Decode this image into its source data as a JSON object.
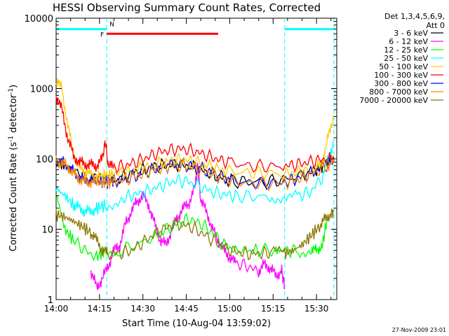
{
  "chart_data": {
    "type": "line",
    "title": "HESSI Observing Summary Count Rates, Corrected",
    "xlabel": "Start Time (10-Aug-04 13:59:02)",
    "ylabel_main": "Corrected Count Rate (s",
    "ylabel_sup": "-1",
    "ylabel_mid": " detector",
    "ylabel_end": ")",
    "yscale": "log",
    "ylim": [
      1,
      10000
    ],
    "xlim_minutes": [
      0,
      97
    ],
    "x_tick_labels": [
      "14:00",
      "14:15",
      "14:30",
      "14:45",
      "15:00",
      "15:15",
      "15:30"
    ],
    "x_tick_minutes": [
      0,
      15,
      30,
      45,
      60,
      75,
      90
    ],
    "y_tick_labels": [
      "1",
      "10",
      "100",
      "1000",
      "10000"
    ],
    "y_tick_values": [
      1,
      10,
      100,
      1000,
      10000
    ],
    "legend_header": [
      "Det 1,3,4,5,6,9,",
      "Att 0"
    ],
    "footer_date": "27-Nov-2009 23:01",
    "night_markers_minutes": [
      17.5,
      79,
      96
    ],
    "bars": [
      {
        "label": "N",
        "color": "#00ffff",
        "y": 7000,
        "segments": [
          [
            0,
            17.5
          ],
          [
            79,
            96
          ]
        ]
      },
      {
        "label": "F",
        "color": "#ff0000",
        "y": 6000,
        "segments": [
          [
            17.5,
            56
          ]
        ]
      }
    ],
    "series": [
      {
        "name": "3 - 6 keV",
        "color": "#000000",
        "points": [
          [
            0,
            88
          ],
          [
            3,
            80
          ],
          [
            8,
            55
          ],
          [
            12,
            52
          ],
          [
            17,
            50
          ],
          [
            22,
            52
          ],
          [
            26,
            62
          ],
          [
            30,
            70
          ],
          [
            34,
            78
          ],
          [
            38,
            82
          ],
          [
            42,
            84
          ],
          [
            46,
            80
          ],
          [
            50,
            70
          ],
          [
            54,
            60
          ],
          [
            58,
            52
          ],
          [
            62,
            48
          ],
          [
            68,
            47
          ],
          [
            74,
            48
          ],
          [
            80,
            52
          ],
          [
            86,
            60
          ],
          [
            90,
            70
          ],
          [
            93,
            85
          ],
          [
            96,
            95
          ]
        ]
      },
      {
        "name": "6 - 12 keV",
        "color": "#ff00ff",
        "points": [
          [
            12,
            2.5
          ],
          [
            14,
            1.5
          ],
          [
            16,
            2
          ],
          [
            18,
            3
          ],
          [
            20,
            5
          ],
          [
            22,
            6
          ],
          [
            24,
            12
          ],
          [
            26,
            18
          ],
          [
            28,
            25
          ],
          [
            30,
            30
          ],
          [
            32,
            22
          ],
          [
            34,
            12
          ],
          [
            36,
            7
          ],
          [
            38,
            6
          ],
          [
            40,
            10
          ],
          [
            42,
            15
          ],
          [
            44,
            20
          ],
          [
            46,
            24
          ],
          [
            48,
            40
          ],
          [
            49,
            80
          ],
          [
            50,
            25
          ],
          [
            52,
            18
          ],
          [
            54,
            10
          ],
          [
            56,
            7
          ],
          [
            58,
            5
          ],
          [
            60,
            4
          ],
          [
            62,
            3.3
          ],
          [
            66,
            3
          ],
          [
            70,
            2.5
          ],
          [
            72,
            3.2
          ],
          [
            74,
            2.8
          ],
          [
            76,
            2.2
          ],
          [
            78,
            2.6
          ],
          [
            79,
            1.5
          ]
        ]
      },
      {
        "name": "12 - 25 keV",
        "color": "#00ff00",
        "points": [
          [
            0,
            33
          ],
          [
            3,
            10
          ],
          [
            6,
            7
          ],
          [
            10,
            5
          ],
          [
            14,
            4
          ],
          [
            17,
            5
          ],
          [
            22,
            5
          ],
          [
            28,
            6
          ],
          [
            34,
            8
          ],
          [
            38,
            10
          ],
          [
            42,
            12
          ],
          [
            46,
            14
          ],
          [
            50,
            12
          ],
          [
            54,
            9
          ],
          [
            58,
            6
          ],
          [
            62,
            5
          ],
          [
            70,
            5
          ],
          [
            76,
            5
          ],
          [
            79,
            5
          ],
          [
            83,
            5
          ],
          [
            88,
            5
          ],
          [
            90,
            5
          ],
          [
            92,
            6
          ],
          [
            93,
            10
          ],
          [
            94,
            15
          ]
        ]
      },
      {
        "name": "25 - 50 keV",
        "color": "#00ffff",
        "points": [
          [
            0,
            38
          ],
          [
            3,
            30
          ],
          [
            6,
            22
          ],
          [
            8,
            20
          ],
          [
            10,
            18
          ],
          [
            12,
            18
          ],
          [
            14,
            20
          ],
          [
            17,
            22
          ],
          [
            22,
            26
          ],
          [
            26,
            30
          ],
          [
            30,
            33
          ],
          [
            34,
            38
          ],
          [
            38,
            44
          ],
          [
            42,
            50
          ],
          [
            46,
            47
          ],
          [
            50,
            40
          ],
          [
            54,
            34
          ],
          [
            58,
            31
          ],
          [
            62,
            30
          ],
          [
            68,
            29
          ],
          [
            74,
            29
          ],
          [
            79,
            29
          ],
          [
            84,
            30
          ],
          [
            88,
            34
          ],
          [
            92,
            55
          ],
          [
            94,
            100
          ],
          [
            96,
            180
          ]
        ]
      },
      {
        "name": "50 - 100 keV",
        "color": "#ffcc00",
        "points": [
          [
            0,
            1300
          ],
          [
            2,
            1000
          ],
          [
            4,
            300
          ],
          [
            6,
            120
          ],
          [
            8,
            75
          ],
          [
            10,
            66
          ],
          [
            12,
            60
          ],
          [
            14,
            56
          ],
          [
            17,
            58
          ],
          [
            20,
            62
          ],
          [
            24,
            65
          ],
          [
            28,
            72
          ],
          [
            32,
            78
          ],
          [
            36,
            87
          ],
          [
            40,
            95
          ],
          [
            44,
            98
          ],
          [
            48,
            92
          ],
          [
            52,
            82
          ],
          [
            56,
            72
          ],
          [
            60,
            66
          ],
          [
            66,
            64
          ],
          [
            72,
            63
          ],
          [
            78,
            62
          ],
          [
            82,
            64
          ],
          [
            86,
            68
          ],
          [
            90,
            75
          ],
          [
            92,
            90
          ],
          [
            94,
            200
          ],
          [
            96,
            420
          ]
        ]
      },
      {
        "name": "100 - 300 keV",
        "color": "#ff0000",
        "points": [
          [
            0,
            800
          ],
          [
            2,
            500
          ],
          [
            4,
            200
          ],
          [
            6,
            110
          ],
          [
            8,
            90
          ],
          [
            10,
            85
          ],
          [
            12,
            82
          ],
          [
            14,
            80
          ],
          [
            16,
            100
          ],
          [
            17,
            180
          ],
          [
            18,
            80
          ],
          [
            20,
            76
          ],
          [
            24,
            80
          ],
          [
            28,
            92
          ],
          [
            32,
            108
          ],
          [
            36,
            125
          ],
          [
            40,
            135
          ],
          [
            44,
            138
          ],
          [
            48,
            128
          ],
          [
            52,
            112
          ],
          [
            56,
            98
          ],
          [
            60,
            88
          ],
          [
            66,
            80
          ],
          [
            72,
            78
          ],
          [
            78,
            79
          ],
          [
            82,
            82
          ],
          [
            86,
            88
          ],
          [
            90,
            95
          ],
          [
            94,
            100
          ],
          [
            96,
            102
          ]
        ]
      },
      {
        "name": "300 - 800 keV",
        "color": "#0000ff",
        "points": [
          [
            0,
            95
          ],
          [
            2,
            90
          ],
          [
            4,
            80
          ],
          [
            6,
            65
          ],
          [
            8,
            54
          ],
          [
            10,
            50
          ],
          [
            12,
            49
          ],
          [
            14,
            48
          ],
          [
            17,
            47
          ],
          [
            20,
            49
          ],
          [
            24,
            52
          ],
          [
            28,
            58
          ],
          [
            32,
            67
          ],
          [
            36,
            76
          ],
          [
            40,
            82
          ],
          [
            44,
            83
          ],
          [
            48,
            77
          ],
          [
            52,
            68
          ],
          [
            56,
            58
          ],
          [
            60,
            50
          ],
          [
            66,
            46
          ],
          [
            72,
            45
          ],
          [
            78,
            46
          ],
          [
            82,
            50
          ],
          [
            86,
            58
          ],
          [
            90,
            68
          ],
          [
            94,
            84
          ],
          [
            96,
            92
          ]
        ]
      },
      {
        "name": "800 - 7000 keV",
        "color": "#ff8800",
        "points": [
          [
            0,
            92
          ],
          [
            2,
            88
          ],
          [
            4,
            78
          ],
          [
            6,
            62
          ],
          [
            8,
            52
          ],
          [
            10,
            48
          ],
          [
            12,
            47
          ],
          [
            14,
            46
          ],
          [
            17,
            46
          ],
          [
            20,
            48
          ],
          [
            24,
            51
          ],
          [
            28,
            57
          ],
          [
            32,
            65
          ],
          [
            36,
            74
          ],
          [
            40,
            80
          ],
          [
            44,
            81
          ],
          [
            48,
            75
          ],
          [
            52,
            66
          ],
          [
            56,
            56
          ],
          [
            60,
            49
          ],
          [
            66,
            45
          ],
          [
            72,
            44
          ],
          [
            78,
            45
          ],
          [
            82,
            49
          ],
          [
            86,
            56
          ],
          [
            90,
            66
          ],
          [
            94,
            82
          ],
          [
            96,
            90
          ]
        ]
      },
      {
        "name": "7000 - 20000 keV",
        "color": "#8b7500",
        "points": [
          [
            0,
            16
          ],
          [
            3,
            15
          ],
          [
            6,
            13
          ],
          [
            9,
            11
          ],
          [
            12,
            9
          ],
          [
            14,
            7
          ],
          [
            16,
            5
          ],
          [
            18,
            4.5
          ],
          [
            22,
            4.5
          ],
          [
            26,
            5
          ],
          [
            30,
            6.5
          ],
          [
            34,
            8.5
          ],
          [
            38,
            10.5
          ],
          [
            42,
            12
          ],
          [
            46,
            11
          ],
          [
            50,
            9
          ],
          [
            54,
            7
          ],
          [
            58,
            5.5
          ],
          [
            62,
            4.8
          ],
          [
            66,
            4.5
          ],
          [
            70,
            4.5
          ],
          [
            74,
            4.6
          ],
          [
            79,
            4.5
          ],
          [
            82,
            5
          ],
          [
            85,
            6
          ],
          [
            88,
            8
          ],
          [
            91,
            11
          ],
          [
            93,
            14
          ],
          [
            95,
            17
          ],
          [
            96,
            18
          ]
        ]
      }
    ]
  }
}
